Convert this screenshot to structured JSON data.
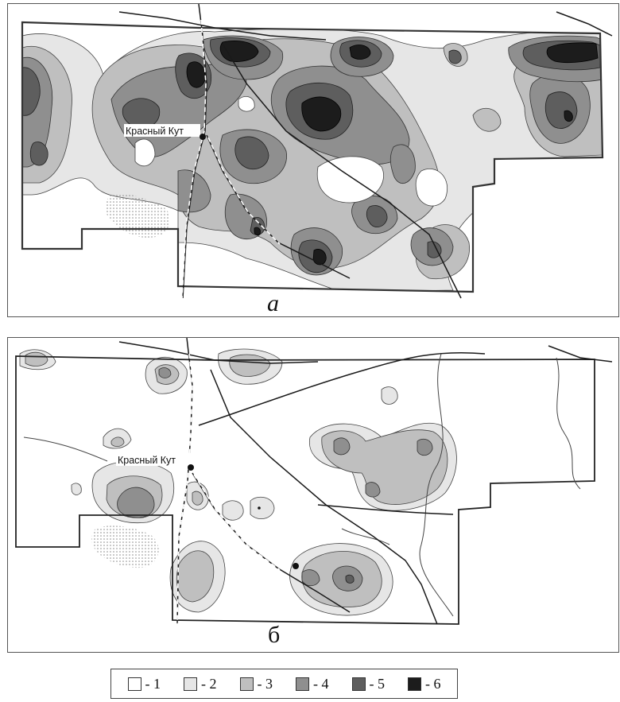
{
  "panels": [
    {
      "letter": "а",
      "town": "Красный Кут"
    },
    {
      "letter": "б",
      "town": "Красный Кут"
    }
  ],
  "legend": [
    {
      "label": "- 1",
      "color": "#ffffff"
    },
    {
      "label": "- 2",
      "color": "#e6e6e6"
    },
    {
      "label": "- 3",
      "color": "#bfbfbf"
    },
    {
      "label": "- 4",
      "color": "#8f8f8f"
    },
    {
      "label": "- 5",
      "color": "#5e5e5e"
    },
    {
      "label": "- 6",
      "color": "#1c1c1c"
    }
  ]
}
